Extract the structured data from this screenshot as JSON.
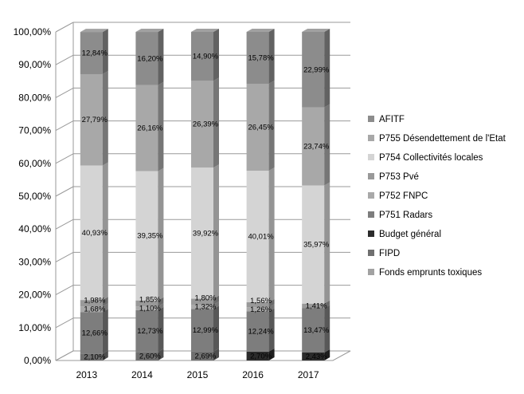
{
  "chart_data": {
    "type": "bar",
    "stacked": true,
    "percent_scale": true,
    "categories": [
      "2013",
      "2014",
      "2015",
      "2016",
      "2017"
    ],
    "yticks": [
      "0,00%",
      "10,00%",
      "20,00%",
      "30,00%",
      "40,00%",
      "50,00%",
      "60,00%",
      "70,00%",
      "80,00%",
      "90,00%",
      "100,00%"
    ],
    "ylim": [
      0,
      100
    ],
    "grid": true,
    "legend_position": "right",
    "series": [
      {
        "name": "Fonds emprunts toxiques",
        "color": "#a2a2a2",
        "values": [
          0,
          0,
          0,
          0,
          0
        ],
        "labels": [
          "",
          "",
          "",
          "",
          ""
        ]
      },
      {
        "name": "FIPD",
        "color": "#6f6f6f",
        "values": [
          2.1,
          2.6,
          2.69,
          0,
          0
        ],
        "labels": [
          "2,10%",
          "2,60%",
          "2,69%",
          "",
          ""
        ]
      },
      {
        "name": "Budget général",
        "color": "#2b2b2b",
        "values": [
          0,
          0,
          0,
          2.7,
          2.43
        ],
        "labels": [
          "",
          "",
          "",
          "2,70%",
          "2,43%"
        ]
      },
      {
        "name": "P751 Radars",
        "color": "#7d7d7d",
        "values": [
          12.66,
          12.73,
          12.99,
          12.24,
          13.47
        ],
        "labels": [
          "12,66%",
          "12,73%",
          "12,99%",
          "12,24%",
          "13,47%"
        ]
      },
      {
        "name": "P752 FNPC",
        "color": "#a9a9a9",
        "values": [
          1.68,
          1.1,
          1.32,
          1.26,
          0
        ],
        "labels": [
          "1,68%",
          "1,10%",
          "1,32%",
          "1,26%",
          ""
        ]
      },
      {
        "name": "P753 Pvé",
        "color": "#999999",
        "values": [
          1.98,
          1.85,
          1.8,
          1.56,
          1.41
        ],
        "labels": [
          "1,98%",
          "1,85%",
          "1,80%",
          "1,56%",
          "1,41%"
        ]
      },
      {
        "name": "P754 Collectivités locales",
        "color": "#d4d4d4",
        "values": [
          40.93,
          39.35,
          39.92,
          40.01,
          35.97
        ],
        "labels": [
          "40,93%",
          "39,35%",
          "39,92%",
          "40,01%",
          "35,97%"
        ]
      },
      {
        "name": "P755 Désendettement de l'Etat",
        "color": "#a8a8a8",
        "values": [
          27.79,
          26.16,
          26.39,
          26.45,
          23.74
        ],
        "labels": [
          "27,79%",
          "26,16%",
          "26,39%",
          "26,45%",
          "23,74%"
        ]
      },
      {
        "name": "AFITF",
        "color": "#8c8c8c",
        "values": [
          12.84,
          16.2,
          14.9,
          15.78,
          22.99
        ],
        "labels": [
          "12,84%",
          "16,20%",
          "14,90%",
          "15,78%",
          "22,99%"
        ]
      }
    ]
  }
}
